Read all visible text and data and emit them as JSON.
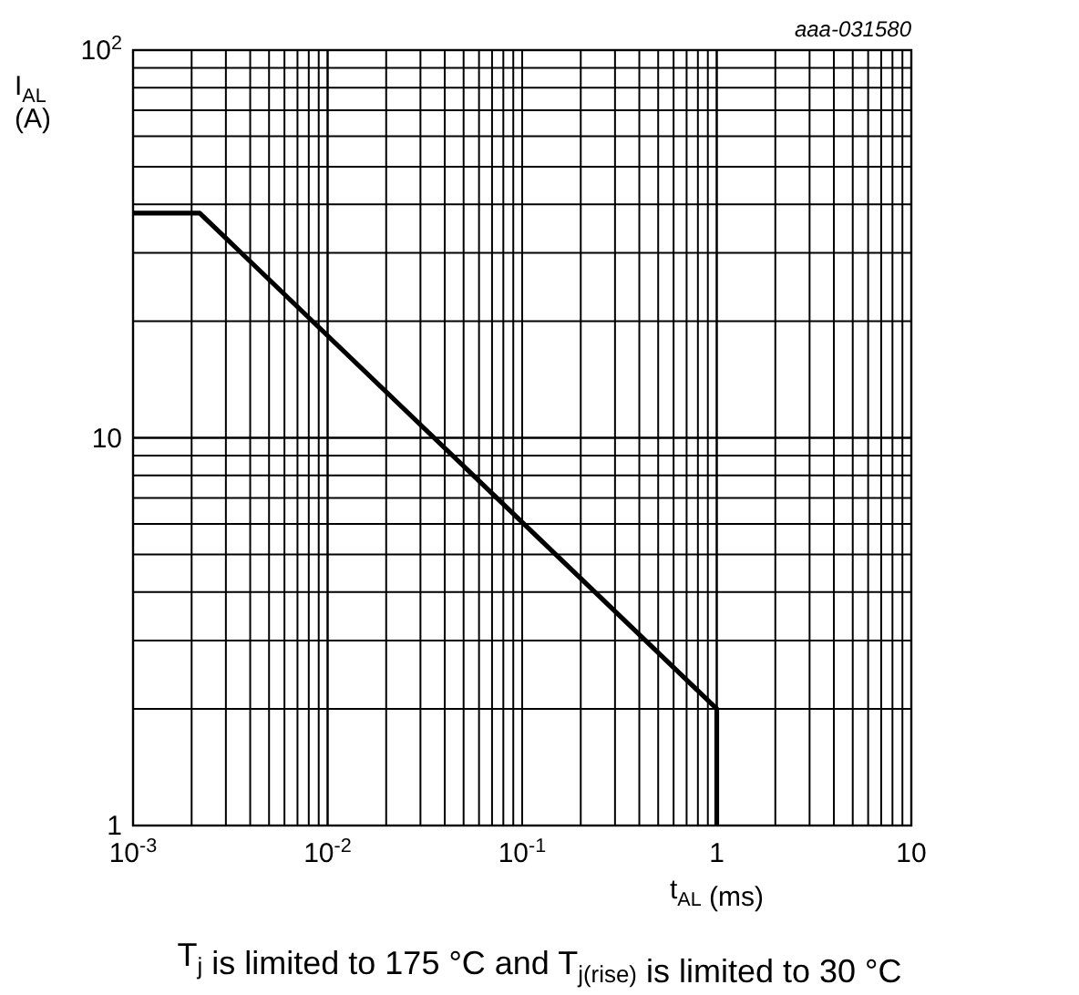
{
  "chart_data": {
    "type": "line",
    "xlabel": "t$_{AL}$ (ms)",
    "ylabel": "I$_{AL}$ (A)",
    "annotations": [
      "aaa-031580",
      "T$_{j}$ is limited to 175 °C and T$_{j(rise)}$ is limited to 30 °C"
    ],
    "log": "xy",
    "grid": true,
    "marker": "none",
    "line_style": "solid",
    "xlim": [
      0.001,
      10
    ],
    "ylim": [
      1,
      100
    ],
    "xticks": [
      {
        "value": 0.001,
        "label": "10$^{-3}$"
      },
      {
        "value": 0.01,
        "label": "10$^{-2}$"
      },
      {
        "value": 0.1,
        "label": "10$^{-1}$"
      },
      1,
      10
    ],
    "yticks": [
      1,
      10,
      {
        "value": 100,
        "label": "10$^{2}$"
      }
    ],
    "series": [
      {
        "color": "#000000",
        "x": [
          0.001,
          0.0022,
          1,
          1
        ],
        "values": [
          38,
          38,
          2,
          1
        ]
      }
    ]
  }
}
